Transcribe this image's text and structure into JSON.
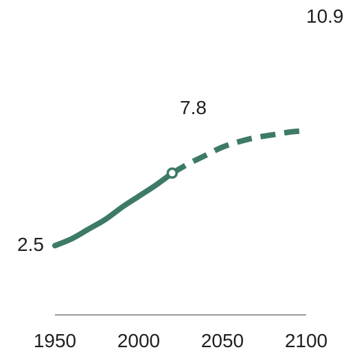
{
  "colors": {
    "line": "#3d7a68",
    "axis": "#9a9a9a",
    "text": "#1f1f1f",
    "background": "#ffffff"
  },
  "chart_data": {
    "type": "line",
    "title": "",
    "xlabel": "",
    "ylabel": "",
    "xlim": [
      1950,
      2100
    ],
    "ylim": [
      0,
      11.5
    ],
    "grid": false,
    "legend": "none",
    "x_ticks": [
      "1950",
      "2000",
      "2050",
      "2100"
    ],
    "series": [
      {
        "segment": "observed",
        "style": "solid",
        "x": [
          1950,
          1960,
          1970,
          1980,
          1990,
          2000,
          2010,
          2020
        ],
        "y": [
          2.5,
          3.0,
          3.7,
          4.4,
          5.3,
          6.1,
          6.9,
          7.8
        ]
      },
      {
        "segment": "projected",
        "style": "dashed",
        "x": [
          2020,
          2030,
          2040,
          2050,
          2060,
          2070,
          2080,
          2090,
          2100
        ],
        "y": [
          7.8,
          8.5,
          9.1,
          9.7,
          10.1,
          10.4,
          10.6,
          10.8,
          10.9
        ]
      }
    ],
    "annotations": [
      {
        "x": 1950,
        "y": 2.5,
        "text": "2.5",
        "position": "left"
      },
      {
        "x": 2020,
        "y": 7.8,
        "text": "7.8",
        "position": "right",
        "marker": "open-circle"
      },
      {
        "x": 2100,
        "y": 10.9,
        "text": "10.9",
        "position": "right"
      }
    ]
  }
}
